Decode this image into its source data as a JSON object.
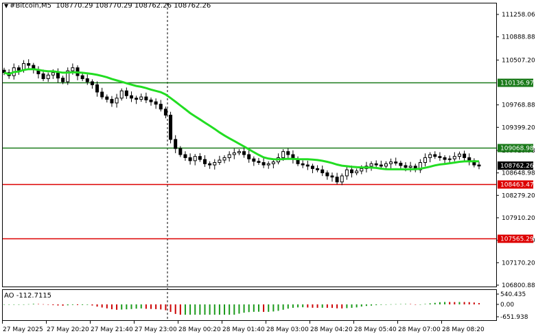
{
  "header": {
    "arrow": "▼",
    "symbol": "#Bitcoin,M5",
    "ohlc": "108770.29 108770.29 108762.26 108762.26"
  },
  "ao_label": "AO -112.7115",
  "price_axis": {
    "ticks": [
      "111258.06",
      "110888.88",
      "110507.20",
      "109768.88",
      "109399.20",
      "109018.98",
      "108648.98",
      "108279.20",
      "107910.20",
      "107540.20",
      "107170.20",
      "106800.88"
    ],
    "current_price": "108762.26",
    "levels": [
      {
        "value": "110136.97",
        "color": "#1a7a1a"
      },
      {
        "value": "109068.98",
        "color": "#1a7a1a"
      },
      {
        "value": "108463.47",
        "color": "#dd0000"
      },
      {
        "value": "107565.29",
        "color": "#dd0000"
      }
    ]
  },
  "ao_axis": {
    "ticks": [
      "540.435",
      "0.00",
      "-651.938"
    ]
  },
  "time_axis": {
    "labels": [
      "27 May 2025",
      "27 May 20:20",
      "27 May 21:40",
      "27 May 23:00",
      "28 May 00:20",
      "28 May 01:40",
      "28 May 03:00",
      "28 May 04:20",
      "28 May 05:40",
      "28 May 07:00",
      "28 May 08:20"
    ]
  },
  "chart_data": {
    "type": "candlestick",
    "symbol": "#Bitcoin",
    "timeframe": "M5",
    "y_range": [
      106800,
      111400
    ],
    "moving_average_color": "#22dd22",
    "close_approx": [
      110300,
      110250,
      110380,
      110340,
      110450,
      110420,
      110350,
      110280,
      110200,
      110260,
      110300,
      110210,
      110150,
      110330,
      110380,
      110250,
      110200,
      110150,
      110100,
      109980,
      109900,
      109860,
      109800,
      109880,
      110000,
      109920,
      109880,
      109860,
      109900,
      109850,
      109820,
      109780,
      109700,
      109600,
      109200,
      109050,
      108950,
      108900,
      108850,
      108920,
      108870,
      108800,
      108780,
      108820,
      108860,
      108900,
      108950,
      108980,
      109000,
      108950,
      108880,
      108840,
      108820,
      108780,
      108800,
      108830,
      108900,
      109000,
      108950,
      108880,
      108800,
      108780,
      108760,
      108720,
      108700,
      108650,
      108600,
      108580,
      108500,
      108600,
      108700,
      108650,
      108680,
      108720,
      108760,
      108800,
      108780,
      108760,
      108800,
      108830,
      108810,
      108770,
      108740,
      108760,
      108700,
      108820,
      108900,
      108950,
      108920,
      108900,
      108870,
      108880,
      108920,
      108960,
      108900,
      108850,
      108780,
      108762
    ],
    "levels": [
      110136.97,
      109068.98,
      108463.47,
      107565.29
    ],
    "current": 108762.26
  }
}
